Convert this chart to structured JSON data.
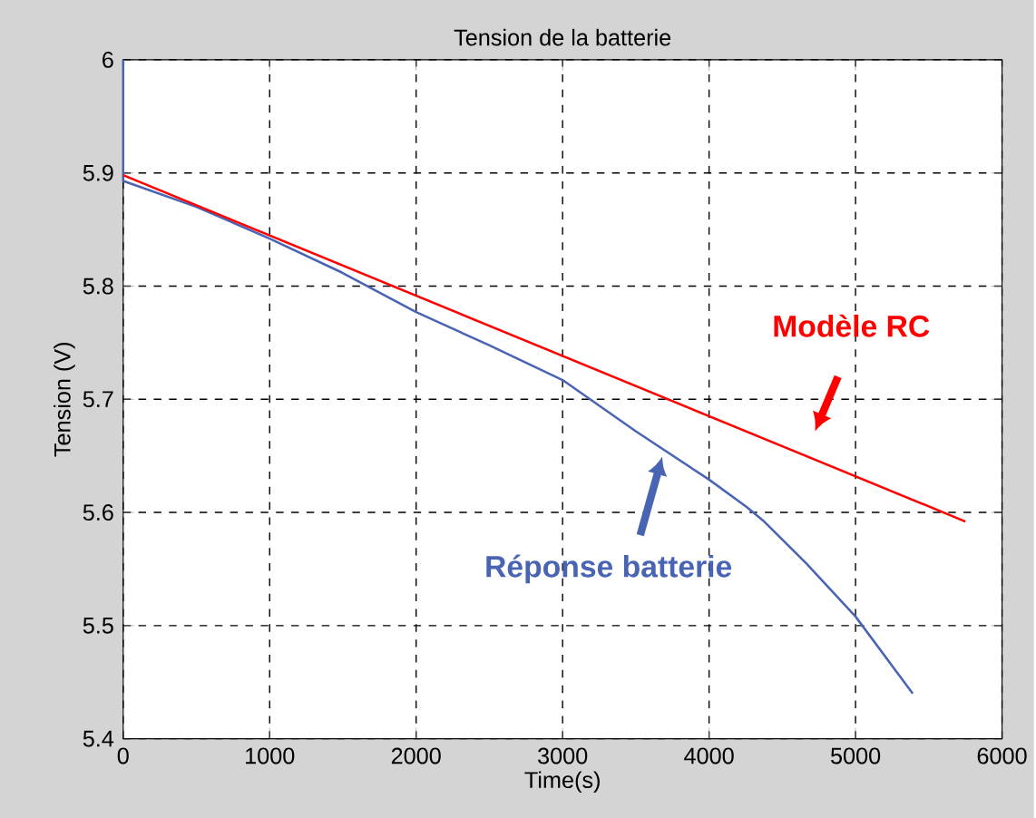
{
  "chart_data": {
    "type": "line",
    "title": "Tension de la batterie",
    "xlabel": "Time(s)",
    "ylabel": "Tension (V)",
    "xlim": [
      0,
      6000
    ],
    "ylim": [
      5.4,
      6
    ],
    "xticks": [
      0,
      1000,
      2000,
      3000,
      4000,
      5000,
      6000
    ],
    "yticks": [
      5.4,
      5.5,
      5.6,
      5.7,
      5.8,
      5.9,
      6
    ],
    "grid": true,
    "series": [
      {
        "color": "#4a64b4",
        "x": [
          0,
          0,
          500,
          1000,
          1493,
          2000,
          2495,
          3000,
          3497,
          4000,
          4254,
          4376,
          4663,
          5000,
          5390
        ],
        "values": [
          6.0,
          5.893,
          5.87,
          5.842,
          5.812,
          5.777,
          5.748,
          5.717,
          5.672,
          5.629,
          5.605,
          5.592,
          5.555,
          5.508,
          5.44
        ]
      },
      {
        "color": "#ff0000",
        "x": [
          0,
          5750
        ],
        "values": [
          5.898,
          5.592
        ]
      }
    ],
    "annotations": [
      "Modèle RC",
      "Réponse batterie"
    ]
  }
}
